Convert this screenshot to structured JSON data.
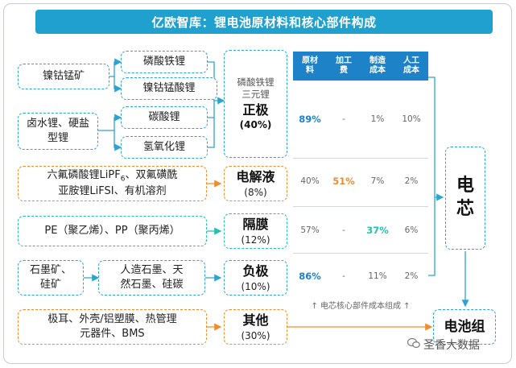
{
  "title": "亿欧智库：锂电池原材料和核心部件构成",
  "raw_materials": {
    "r1": "镍钴锰矿",
    "r2_line1": "卤水锂、硬盐",
    "r2_line2": "型锂",
    "r3_line1": "六氟磷酸锂LiPF",
    "r3_sub": "6",
    "r3_line1b": "、双氟磺酰",
    "r3_line2": "亚胺锂LiFSI、有机溶剂",
    "r4": "PE（聚乙烯）、PP（聚丙烯）",
    "r5_line1": "石墨矿、",
    "r5_line2": "硅矿",
    "r6_line1": "极耳、外壳/铝塑膜、热管理",
    "r6_line2": "元器件、BMS"
  },
  "intermediates": {
    "i1": "磷酸铁锂",
    "i2": "镍钴锰酸锂",
    "i3": "碳酸锂",
    "i4": "氢氧化锂",
    "i5_line1": "人造石墨、天",
    "i5_line2": "然石墨、硅碳"
  },
  "components": {
    "cathode": {
      "sub1": "磷酸铁锂",
      "sub2": "三元锂",
      "name": "正极",
      "pct": "(40%)"
    },
    "electrolyte": {
      "name": "电解液",
      "pct": "(8%)"
    },
    "separator": {
      "name": "隔膜",
      "pct": "(12%)"
    },
    "anode": {
      "name": "负极",
      "pct": "(10%)"
    },
    "others": {
      "name": "其他",
      "pct": "(30%)"
    }
  },
  "cost_table": {
    "headers": [
      [
        "原材",
        "料"
      ],
      [
        "加工",
        "费"
      ],
      [
        "制造",
        "成本"
      ],
      [
        "人工",
        "成本"
      ]
    ],
    "rows": [
      {
        "raw": "89%",
        "process": "-",
        "manufacture": "1%",
        "labor": "10%"
      },
      {
        "raw": "40%",
        "process": "51%",
        "manufacture": "7%",
        "labor": "2%"
      },
      {
        "raw": "57%",
        "process": "-",
        "manufacture": "37%",
        "labor": "6%"
      },
      {
        "raw": "86%",
        "process": "-",
        "manufacture": "11%",
        "labor": "2%"
      }
    ],
    "note": "↑ 电芯核心部件成本组成 ↑"
  },
  "cell_label": {
    "line1": "电",
    "line2": "芯"
  },
  "pack_label": "电池组",
  "watermark": "圣香大数据",
  "colors": {
    "title_bg": "#1fa0cf",
    "header_bg": "#1d82c7",
    "blue": "#2da4cf",
    "orange": "#f08c2a",
    "teal": "#22bfb2"
  }
}
